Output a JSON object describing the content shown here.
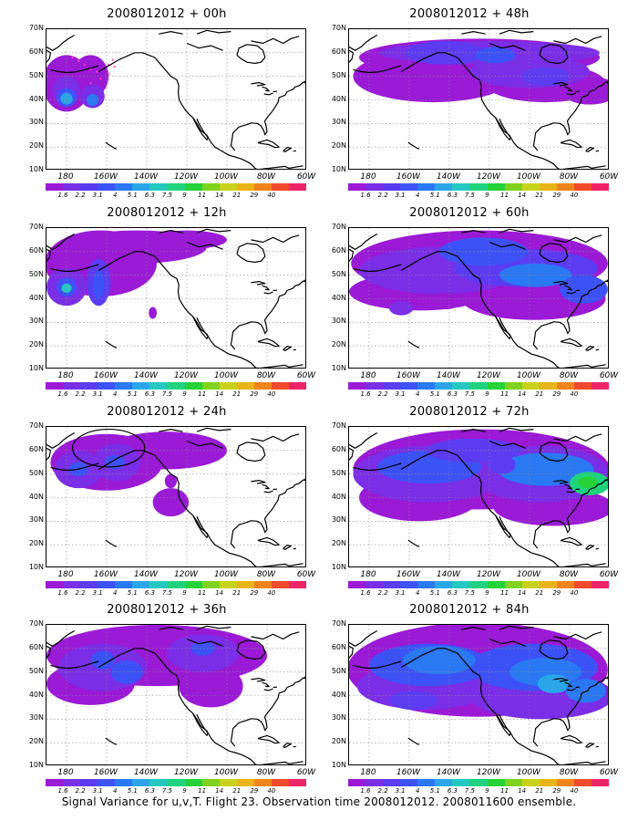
{
  "panels": [
    {
      "title": "2008012012 + 00h"
    },
    {
      "title": "2008012012 + 48h"
    },
    {
      "title": "2008012012 + 12h"
    },
    {
      "title": "2008012012 + 60h"
    },
    {
      "title": "2008012012 + 24h"
    },
    {
      "title": "2008012012 + 72h"
    },
    {
      "title": "2008012012 + 36h"
    },
    {
      "title": "2008012012 + 84h"
    }
  ],
  "lat_labels": [
    "70N",
    "60N",
    "50N",
    "40N",
    "30N",
    "20N",
    "10N"
  ],
  "lon_labels": [
    "180",
    "160W",
    "140W",
    "120W",
    "100W",
    "80W",
    "60W"
  ],
  "colorbar": {
    "labels": [
      "1.6",
      "2.2",
      "3.1",
      "4",
      "5.1",
      "6.3",
      "7.5",
      "9",
      "11",
      "14",
      "21",
      "29",
      "40"
    ],
    "colors": [
      "#9a1ad6",
      "#7a2ee6",
      "#5b3cf0",
      "#3d52f5",
      "#2a78f2",
      "#2aa6e8",
      "#25c8c0",
      "#1fd27e",
      "#25d23a",
      "#7fd21e",
      "#c8d21c",
      "#e8b41a",
      "#f0841c",
      "#f04a2c",
      "#ee2468"
    ]
  },
  "colors": {
    "land_line": "#000000",
    "grid": "#8a8a8a",
    "ocean": "#ffffff"
  },
  "caption": "Signal Variance for u,v,T. Flight 23. Observation time 2008012012. 2008011600 ensemble."
}
